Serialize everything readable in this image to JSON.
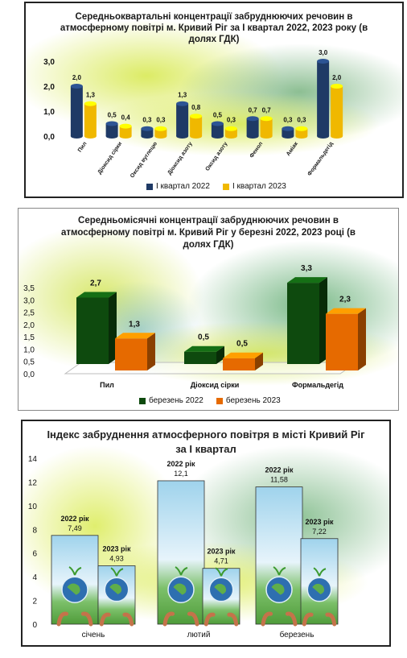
{
  "colors": {
    "navy": "#1f3a66",
    "gold": "#f0b800",
    "darkgreen": "#0e4a0e",
    "orange": "#e66a00"
  },
  "chart_data": [
    {
      "type": "bar",
      "title": "Середньоквартальні концентрації забруднюючих речовин в атмосферному повітрі м. Кривий Ріг за І квартал 2022, 2023 року (в долях ГДК)",
      "categories": [
        "Пил",
        "Діоксид сірки",
        "Оксид вуглецю",
        "Діоксид азоту",
        "Оксид азоту",
        "Фенол",
        "Аміак",
        "Формальдегід"
      ],
      "series": [
        {
          "name": "І квартал 2022",
          "values": [
            2.0,
            0.5,
            0.3,
            1.3,
            0.5,
            0.7,
            0.3,
            3.0
          ],
          "labels": [
            "2,0",
            "0,5",
            "0,3",
            "1,3",
            "0,5",
            "0,7",
            "0,3",
            "3,0"
          ]
        },
        {
          "name": "І квартал 2023",
          "values": [
            1.3,
            0.4,
            0.3,
            0.8,
            0.3,
            0.7,
            0.3,
            2.0
          ],
          "labels": [
            "1,3",
            "0,4",
            "0,3",
            "0,8",
            "0,3",
            "0,7",
            "0,3",
            "2,0"
          ]
        }
      ],
      "yticks": [
        "0,0",
        "1,0",
        "2,0",
        "3,0"
      ],
      "ylim": [
        0,
        3
      ],
      "legend": "bottom"
    },
    {
      "type": "bar",
      "title": "Середньомісячні концентрації забруднюючих речовин в атмосферному повітрі м. Кривий Ріг у березні 2022, 2023  році (в долях ГДК)",
      "categories": [
        "Пил",
        "Діоксид сірки",
        "Формальдегід"
      ],
      "series": [
        {
          "name": "березень 2022",
          "values": [
            2.7,
            0.5,
            3.3
          ],
          "labels": [
            "2,7",
            "0,5",
            "3,3"
          ]
        },
        {
          "name": "березень  2023",
          "values": [
            1.3,
            0.5,
            2.3
          ],
          "labels": [
            "1,3",
            "0,5",
            "2,3"
          ]
        }
      ],
      "yticks": [
        "0,0",
        "0,5",
        "1,0",
        "1,5",
        "2,0",
        "2,5",
        "3,0",
        "3,5"
      ],
      "ylim": [
        0,
        3.5
      ],
      "legend": "bottom"
    },
    {
      "type": "bar",
      "title": "Індекс забруднення атмосферного повітря в місті Кривий Ріг за І квартал",
      "categories": [
        "січень",
        "лютий",
        "березень"
      ],
      "series": [
        {
          "name": "2022 рік",
          "values": [
            7.49,
            12.1,
            11.58
          ],
          "labels": [
            "7,49",
            "12,1",
            "11,58"
          ]
        },
        {
          "name": "2023 рік",
          "values": [
            4.93,
            4.71,
            7.22
          ],
          "labels": [
            "4,93",
            "4,71",
            "7,22"
          ]
        }
      ],
      "yticks": [
        "0",
        "2",
        "4",
        "6",
        "8",
        "10",
        "12",
        "14"
      ],
      "ylim": [
        0,
        14
      ]
    }
  ]
}
